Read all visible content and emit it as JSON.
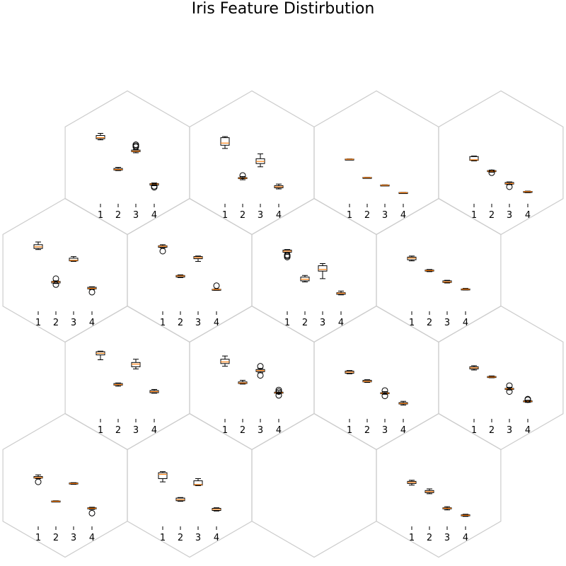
{
  "chart_data": {
    "type": "box",
    "title": "Iris Feature Distirbution",
    "panel_ylim": [
      0,
      8
    ],
    "features": [
      "1",
      "2",
      "3",
      "4"
    ],
    "panels": [
      {
        "id": "r0c0",
        "boxes": [
          {
            "q1": 5.5,
            "med": 5.6,
            "q3": 5.8,
            "lo": 5.4,
            "hi": 6.0,
            "fliers": []
          },
          {
            "q1": 2.6,
            "med": 2.65,
            "q3": 2.75,
            "lo": 2.55,
            "hi": 2.85,
            "fliers": []
          },
          {
            "q1": 4.3,
            "med": 4.35,
            "q3": 4.45,
            "lo": 4.2,
            "hi": 4.5,
            "fliers": [
              4.75,
              4.85,
              4.95
            ]
          },
          {
            "q1": 1.2,
            "med": 1.3,
            "q3": 1.35,
            "lo": 1.15,
            "hi": 1.4,
            "fliers": [
              1.0,
              1.1
            ]
          }
        ]
      },
      {
        "id": "r0c1",
        "boxes": [
          {
            "q1": 4.9,
            "med": 5.1,
            "q3": 5.6,
            "lo": 4.6,
            "hi": 5.7,
            "fliers": []
          },
          {
            "q1": 1.8,
            "med": 1.85,
            "q3": 1.9,
            "lo": 1.7,
            "hi": 2.0,
            "fliers": [
              2.1
            ]
          },
          {
            "q1": 3.2,
            "med": 3.4,
            "q3": 3.65,
            "lo": 2.9,
            "hi": 4.1,
            "fliers": []
          },
          {
            "q1": 0.95,
            "med": 1.05,
            "q3": 1.15,
            "lo": 0.85,
            "hi": 1.3,
            "fliers": []
          }
        ]
      },
      {
        "id": "r0c2",
        "boxes": [
          {
            "q1": 3.58,
            "med": 3.6,
            "q3": 3.62,
            "lo": 3.57,
            "hi": 3.63,
            "fliers": []
          },
          {
            "q1": 1.88,
            "med": 1.9,
            "q3": 1.92,
            "lo": 1.87,
            "hi": 1.93,
            "fliers": []
          },
          {
            "q1": 1.18,
            "med": 1.2,
            "q3": 1.22,
            "lo": 1.17,
            "hi": 1.23,
            "fliers": []
          },
          {
            "q1": 0.48,
            "med": 0.5,
            "q3": 0.52,
            "lo": 0.47,
            "hi": 0.53,
            "fliers": []
          }
        ]
      },
      {
        "id": "r0c3",
        "boxes": [
          {
            "q1": 3.5,
            "med": 3.55,
            "q3": 3.85,
            "lo": 3.45,
            "hi": 3.9,
            "fliers": []
          },
          {
            "q1": 2.45,
            "med": 2.5,
            "q3": 2.55,
            "lo": 2.4,
            "hi": 2.6,
            "fliers": [
              2.35
            ]
          },
          {
            "q1": 1.3,
            "med": 1.35,
            "q3": 1.45,
            "lo": 1.25,
            "hi": 1.5,
            "fliers": [
              1.05
            ]
          },
          {
            "q1": 0.55,
            "med": 0.6,
            "q3": 0.62,
            "lo": 0.5,
            "hi": 0.65,
            "fliers": []
          }
        ]
      },
      {
        "id": "r1c0",
        "boxes": [
          {
            "q1": 5.3,
            "med": 5.45,
            "q3": 5.65,
            "lo": 5.2,
            "hi": 5.9,
            "fliers": []
          },
          {
            "q1": 2.1,
            "med": 2.2,
            "q3": 2.25,
            "lo": 2.05,
            "hi": 2.3,
            "fliers": [
              1.95,
              2.5
            ]
          },
          {
            "q1": 4.15,
            "med": 4.2,
            "q3": 4.4,
            "lo": 4.1,
            "hi": 4.55,
            "fliers": []
          },
          {
            "q1": 1.55,
            "med": 1.6,
            "q3": 1.7,
            "lo": 1.5,
            "hi": 1.75,
            "fliers": [
              1.25
            ]
          }
        ]
      },
      {
        "id": "r1c1",
        "boxes": [
          {
            "q1": 5.4,
            "med": 5.5,
            "q3": 5.55,
            "lo": 5.35,
            "hi": 5.65,
            "fliers": [
              5.05
            ]
          },
          {
            "q1": 2.65,
            "med": 2.75,
            "q3": 2.8,
            "lo": 2.6,
            "hi": 2.85,
            "fliers": []
          },
          {
            "q1": 4.35,
            "med": 4.45,
            "q3": 4.55,
            "lo": 4.1,
            "hi": 4.6,
            "fliers": []
          },
          {
            "q1": 1.45,
            "med": 1.5,
            "q3": 1.52,
            "lo": 1.42,
            "hi": 1.55,
            "fliers": [
              1.85
            ]
          }
        ]
      },
      {
        "id": "r1c2",
        "boxes": [
          {
            "q1": 4.95,
            "med": 5.05,
            "q3": 5.15,
            "lo": 4.85,
            "hi": 5.2,
            "fliers": [
              4.5,
              4.6,
              4.7
            ]
          },
          {
            "q1": 2.3,
            "med": 2.45,
            "q3": 2.65,
            "lo": 2.2,
            "hi": 2.8,
            "fliers": []
          },
          {
            "q1": 3.2,
            "med": 3.35,
            "q3": 3.7,
            "lo": 2.5,
            "hi": 3.9,
            "fliers": []
          },
          {
            "q1": 1.05,
            "med": 1.15,
            "q3": 1.2,
            "lo": 1.0,
            "hi": 1.35,
            "fliers": []
          }
        ]
      },
      {
        "id": "r1c3",
        "boxes": [
          {
            "q1": 4.25,
            "med": 4.4,
            "q3": 4.5,
            "lo": 4.15,
            "hi": 4.6,
            "fliers": []
          },
          {
            "q1": 3.2,
            "med": 3.25,
            "q3": 3.3,
            "lo": 3.15,
            "hi": 3.35,
            "fliers": []
          },
          {
            "q1": 2.15,
            "med": 2.2,
            "q3": 2.3,
            "lo": 2.1,
            "hi": 2.35,
            "fliers": []
          },
          {
            "q1": 1.48,
            "med": 1.52,
            "q3": 1.55,
            "lo": 1.45,
            "hi": 1.6,
            "fliers": []
          }
        ]
      },
      {
        "id": "r2c0",
        "boxes": [
          {
            "q1": 5.4,
            "med": 5.55,
            "q3": 5.7,
            "lo": 4.95,
            "hi": 5.75,
            "fliers": []
          },
          {
            "q1": 2.6,
            "med": 2.65,
            "q3": 2.75,
            "lo": 2.5,
            "hi": 2.8,
            "fliers": []
          },
          {
            "q1": 4.3,
            "med": 4.55,
            "q3": 4.7,
            "lo": 4.1,
            "hi": 5.0,
            "fliers": []
          },
          {
            "q1": 1.9,
            "med": 2.0,
            "q3": 2.1,
            "lo": 1.85,
            "hi": 2.2,
            "fliers": []
          }
        ]
      },
      {
        "id": "r2c1",
        "boxes": [
          {
            "q1": 4.6,
            "med": 4.75,
            "q3": 5.0,
            "lo": 4.35,
            "hi": 5.3,
            "fliers": []
          },
          {
            "q1": 2.75,
            "med": 2.8,
            "q3": 2.9,
            "lo": 2.7,
            "hi": 3.05,
            "fliers": []
          },
          {
            "q1": 3.85,
            "med": 3.95,
            "q3": 4.05,
            "lo": 3.75,
            "hi": 4.15,
            "fliers": [
              3.5,
              4.35
            ]
          },
          {
            "q1": 1.85,
            "med": 1.9,
            "q3": 1.95,
            "lo": 1.8,
            "hi": 2.1,
            "fliers": [
              1.65,
              2.0,
              2.15
            ]
          }
        ]
      },
      {
        "id": "r2c2",
        "boxes": [
          {
            "q1": 3.7,
            "med": 3.8,
            "q3": 3.9,
            "lo": 3.65,
            "hi": 3.95,
            "fliers": []
          },
          {
            "q1": 2.9,
            "med": 2.95,
            "q3": 3.05,
            "lo": 2.85,
            "hi": 3.1,
            "fliers": []
          },
          {
            "q1": 1.8,
            "med": 1.85,
            "q3": 1.9,
            "lo": 1.75,
            "hi": 2.0,
            "fliers": [
              1.6,
              2.1
            ]
          },
          {
            "q1": 0.85,
            "med": 0.9,
            "q3": 0.98,
            "lo": 0.75,
            "hi": 1.1,
            "fliers": []
          }
        ]
      },
      {
        "id": "r2c3",
        "boxes": [
          {
            "q1": 4.1,
            "med": 4.2,
            "q3": 4.3,
            "lo": 4.0,
            "hi": 4.4,
            "fliers": []
          },
          {
            "q1": 3.32,
            "med": 3.35,
            "q3": 3.4,
            "lo": 3.28,
            "hi": 3.45,
            "fliers": []
          },
          {
            "q1": 2.2,
            "med": 2.25,
            "q3": 2.3,
            "lo": 2.15,
            "hi": 2.4,
            "fliers": [
              2.0,
              2.55
            ]
          },
          {
            "q1": 1.05,
            "med": 1.1,
            "q3": 1.15,
            "lo": 1.0,
            "hi": 1.2,
            "fliers": [
              1.25,
              1.3
            ]
          }
        ]
      },
      {
        "id": "r3c0",
        "boxes": [
          {
            "q1": 3.95,
            "med": 4.0,
            "q3": 4.1,
            "lo": 3.9,
            "hi": 4.25,
            "fliers": [
              3.6
            ]
          },
          {
            "q1": 1.78,
            "med": 1.8,
            "q3": 1.83,
            "lo": 1.76,
            "hi": 1.85,
            "fliers": []
          },
          {
            "q1": 3.4,
            "med": 3.45,
            "q3": 3.5,
            "lo": 3.37,
            "hi": 3.53,
            "fliers": []
          },
          {
            "q1": 1.1,
            "med": 1.15,
            "q3": 1.2,
            "lo": 1.05,
            "hi": 1.25,
            "fliers": [
              0.7
            ]
          }
        ]
      },
      {
        "id": "r3c1",
        "boxes": [
          {
            "q1": 3.9,
            "med": 4.3,
            "q3": 4.45,
            "lo": 3.6,
            "hi": 4.55,
            "fliers": []
          },
          {
            "q1": 1.85,
            "med": 1.95,
            "q3": 2.1,
            "lo": 1.8,
            "hi": 2.15,
            "fliers": []
          },
          {
            "q1": 3.3,
            "med": 3.35,
            "q3": 3.7,
            "lo": 3.25,
            "hi": 3.9,
            "fliers": []
          },
          {
            "q1": 0.95,
            "med": 1.05,
            "q3": 1.15,
            "lo": 0.9,
            "hi": 1.2,
            "fliers": []
          }
        ]
      },
      {
        "id": "r3c2",
        "boxes": []
      },
      {
        "id": "r3c3",
        "boxes": [
          {
            "q1": 3.45,
            "med": 3.55,
            "q3": 3.65,
            "lo": 3.3,
            "hi": 3.75,
            "fliers": []
          },
          {
            "q1": 2.6,
            "med": 2.7,
            "q3": 2.8,
            "lo": 2.5,
            "hi": 2.95,
            "fliers": []
          },
          {
            "q1": 1.1,
            "med": 1.15,
            "q3": 1.2,
            "lo": 1.0,
            "hi": 1.3,
            "fliers": []
          },
          {
            "q1": 0.45,
            "med": 0.5,
            "q3": 0.55,
            "lo": 0.4,
            "hi": 0.6,
            "fliers": []
          }
        ]
      }
    ]
  }
}
